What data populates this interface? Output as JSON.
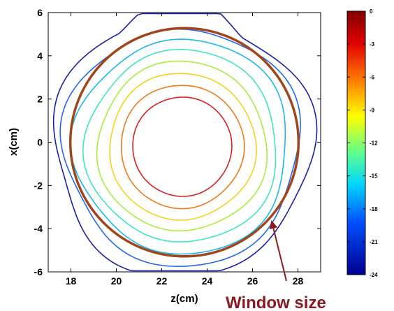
{
  "chart_data": {
    "type": "contour",
    "xlabel": "z(cm)",
    "ylabel": "x(cm)",
    "xlim": [
      17,
      29
    ],
    "ylim": [
      -6,
      6
    ],
    "xticks": [
      "18",
      "20",
      "22",
      "24",
      "26",
      "28"
    ],
    "yticks": [
      "-6",
      "-4",
      "-2",
      "0",
      "2",
      "4",
      "6"
    ],
    "grid": false,
    "colorbar": {
      "range": [
        -24,
        0
      ],
      "ticks": [
        "0",
        "-3",
        "-6",
        "-9",
        "-12",
        "-15",
        "-18",
        "-21",
        "-24"
      ]
    },
    "contour_levels": [
      {
        "level": -3,
        "color": "#d82020"
      },
      {
        "level": -6,
        "color": "#ee7a1a"
      },
      {
        "level": -9,
        "color": "#f2d21e"
      },
      {
        "level": -12,
        "color": "#a8ec40"
      },
      {
        "level": -15,
        "color": "#3ee6c0"
      },
      {
        "level": -18,
        "color": "#1ab6f0"
      },
      {
        "level": -21,
        "color": "#2266ee"
      },
      {
        "level": -24,
        "color": "#1a20a6"
      }
    ],
    "window": {
      "label": "Window size",
      "color": "#a0461a",
      "center": [
        23,
        0
      ],
      "radius_cm": 5.15
    }
  }
}
